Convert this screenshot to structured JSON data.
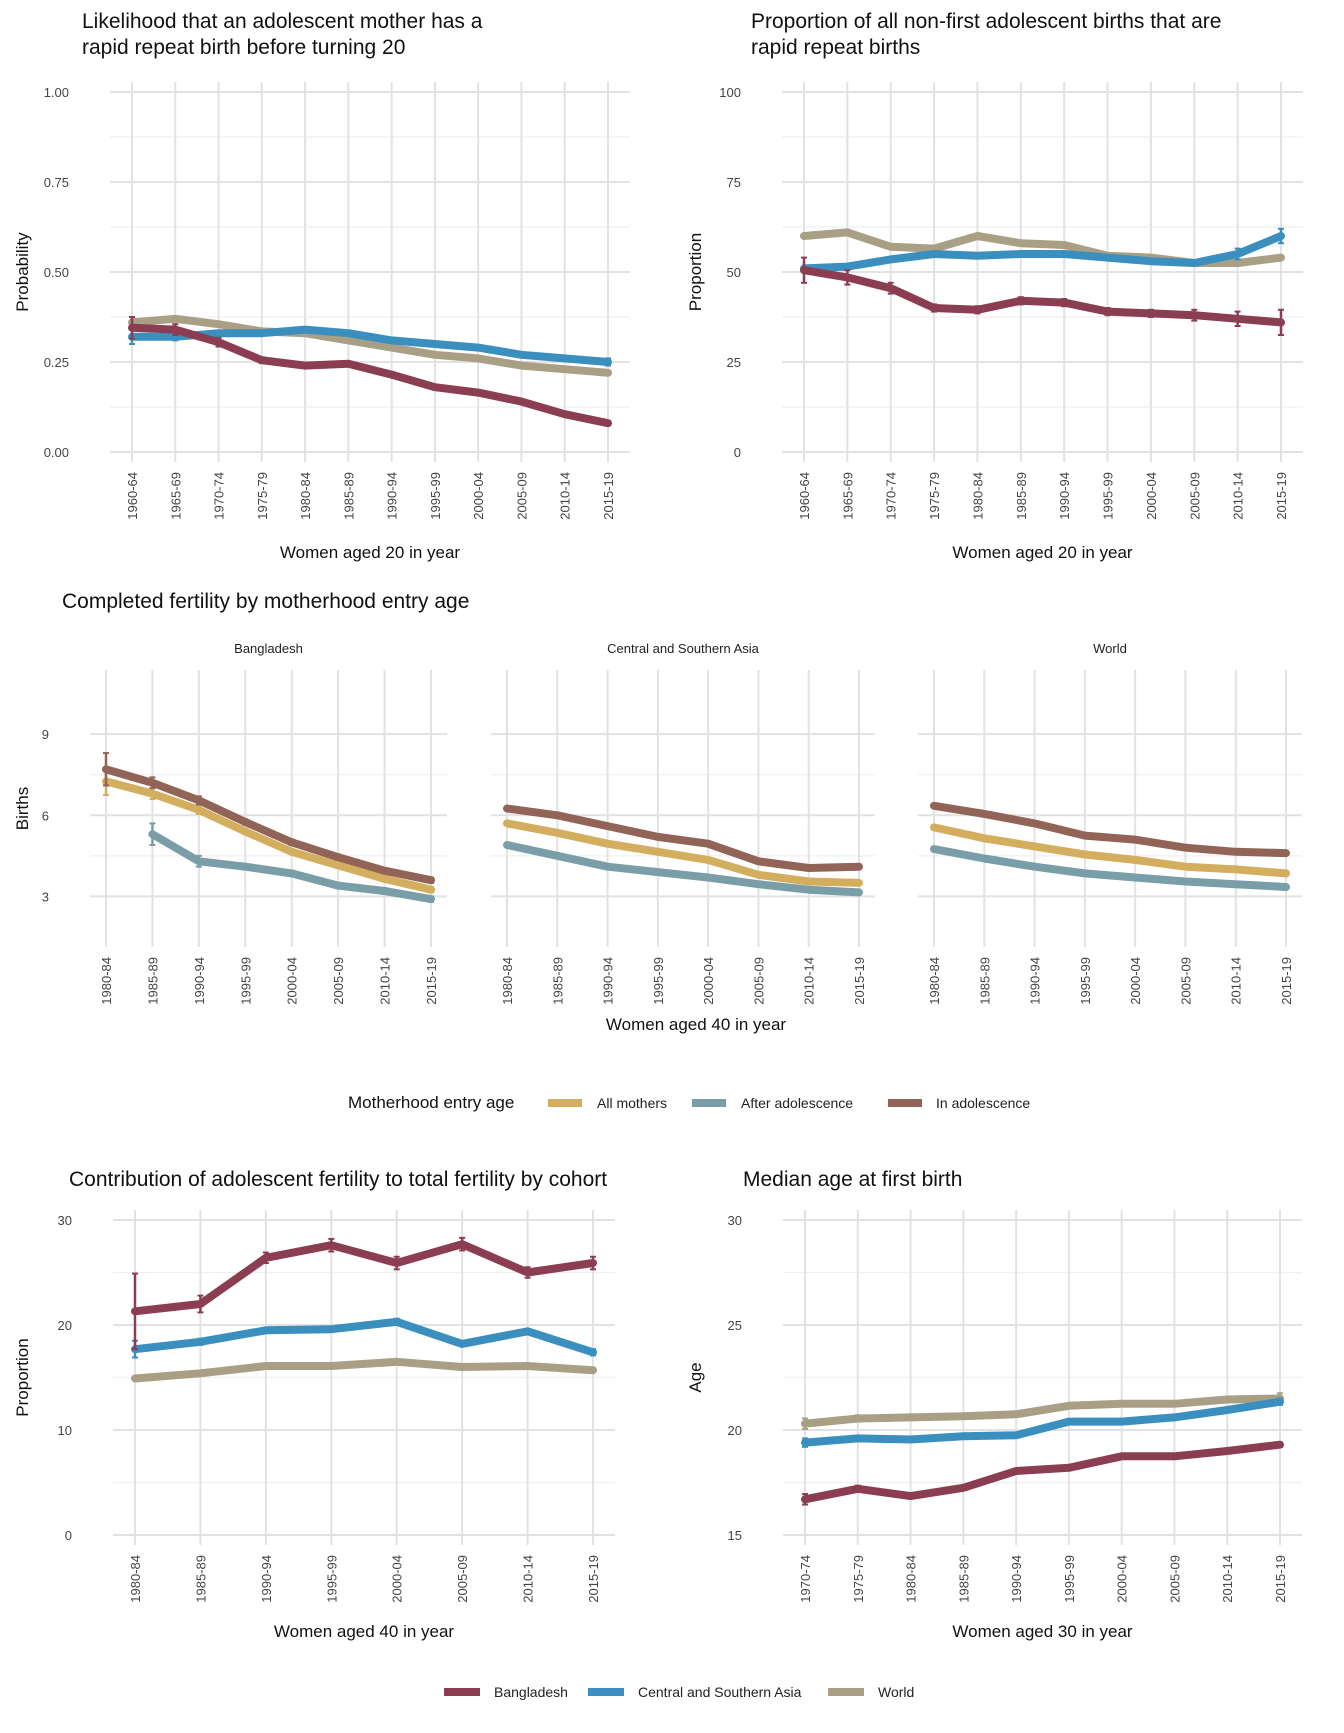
{
  "colors": {
    "Bangladesh": "#8B3E52",
    "Central and Southern Asia": "#3A8FBE",
    "World": "#A89F85",
    "All mothers": "#D4AE5F",
    "After adolescence": "#7A9EA8",
    "In adolescence": "#916457"
  },
  "legend_bottom": {
    "items": [
      "Bangladesh",
      "Central and Southern Asia",
      "World"
    ]
  },
  "legend_mid": {
    "title": "Motherhood entry age",
    "items": [
      "All mothers",
      "After adolescence",
      "In adolescence"
    ]
  },
  "chart_data": [
    {
      "id": "p1",
      "type": "line",
      "title": "Likelihood that an adolescent mother has a rapid repeat birth before turning 20",
      "title_lines": [
        "Likelihood that an adolescent mother has a",
        "rapid repeat birth before turning 20"
      ],
      "xlabel": "Women aged 20 in year",
      "ylabel": "Probability",
      "ylim": [
        0,
        1.0
      ],
      "yticks": [
        0,
        0.25,
        0.5,
        0.75,
        1.0
      ],
      "ytick_labels": [
        "0.00",
        "0.25",
        "0.50",
        "0.75",
        "1.00"
      ],
      "categories": [
        "1960-64",
        "1965-69",
        "1970-74",
        "1975-79",
        "1980-84",
        "1985-89",
        "1990-94",
        "1995-99",
        "2000-04",
        "2005-09",
        "2010-14",
        "2015-19"
      ],
      "grid": true,
      "series": [
        {
          "name": "World",
          "values": [
            0.36,
            0.37,
            0.355,
            0.335,
            0.33,
            0.31,
            0.29,
            0.27,
            0.26,
            0.24,
            0.23,
            0.22
          ]
        },
        {
          "name": "Central and Southern Asia",
          "values": [
            0.32,
            0.32,
            0.33,
            0.33,
            0.34,
            0.33,
            0.31,
            0.3,
            0.29,
            0.27,
            0.26,
            0.25
          ],
          "err": [
            0.02,
            0.01,
            0,
            0,
            0,
            0,
            0,
            0,
            0,
            0,
            0,
            0.01
          ]
        },
        {
          "name": "Bangladesh",
          "values": [
            0.345,
            0.34,
            0.305,
            0.255,
            0.24,
            0.245,
            0.215,
            0.18,
            0.165,
            0.14,
            0.105,
            0.08
          ],
          "err": [
            0.03,
            0.015,
            0.012,
            0.008,
            0.006,
            0.006,
            0.006,
            0.006,
            0.006,
            0.006,
            0.006,
            0.006
          ]
        }
      ]
    },
    {
      "id": "p2",
      "type": "line",
      "title": "Proportion of all non-first adolescent births that are rapid repeat births",
      "title_lines": [
        "Proportion of all non-first adolescent births that are",
        "rapid repeat births"
      ],
      "xlabel": "Women aged 20 in year",
      "ylabel": "Proportion",
      "ylim": [
        0,
        100
      ],
      "yticks": [
        0,
        25,
        50,
        75,
        100
      ],
      "ytick_labels": [
        "0",
        "25",
        "50",
        "75",
        "100"
      ],
      "categories": [
        "1960-64",
        "1965-69",
        "1970-74",
        "1975-79",
        "1980-84",
        "1985-89",
        "1990-94",
        "1995-99",
        "2000-04",
        "2005-09",
        "2010-14",
        "2015-19"
      ],
      "grid": true,
      "series": [
        {
          "name": "World",
          "values": [
            60,
            61,
            57,
            56.5,
            60,
            58,
            57.5,
            54.5,
            54,
            52.5,
            52.5,
            54
          ]
        },
        {
          "name": "Central and Southern Asia",
          "values": [
            51,
            51.5,
            53.5,
            55,
            54.5,
            55,
            55,
            54,
            53,
            52.5,
            55,
            60
          ],
          "err": [
            0,
            0,
            0,
            0,
            0,
            0,
            0,
            0,
            0,
            0,
            1.5,
            2
          ]
        },
        {
          "name": "Bangladesh",
          "values": [
            50.5,
            48.5,
            45.5,
            40,
            39.5,
            42,
            41.5,
            39,
            38.5,
            38,
            37,
            36
          ],
          "err": [
            3.5,
            2,
            1.5,
            1,
            1,
            1,
            1,
            1,
            1,
            1.5,
            2,
            3.5
          ]
        }
      ]
    },
    {
      "id": "p3",
      "type": "line",
      "title": "Completed fertility by motherhood entry age",
      "xlabel": "Women aged 40 in year",
      "ylabel": "Births",
      "ylim": [
        1.5,
        11
      ],
      "yticks": [
        3,
        6,
        9
      ],
      "ytick_labels": [
        "3",
        "6",
        "9"
      ],
      "categories": [
        "1980-84",
        "1985-89",
        "1990-94",
        "1995-99",
        "2000-04",
        "2005-09",
        "2010-14",
        "2015-19"
      ],
      "grid": true,
      "facets": [
        {
          "name": "Bangladesh",
          "series": [
            {
              "name": "After adolescence",
              "values": [
                null,
                5.3,
                4.3,
                4.1,
                3.85,
                3.4,
                3.2,
                2.9
              ],
              "err": [
                0,
                0.4,
                0.2,
                0.1,
                0.1,
                0.1,
                0.1,
                0.1
              ]
            },
            {
              "name": "All mothers",
              "values": [
                7.25,
                6.8,
                6.2,
                5.4,
                4.65,
                4.15,
                3.65,
                3.25
              ],
              "err": [
                0.5,
                0.2,
                0.15,
                0.1,
                0.1,
                0.1,
                0.1,
                0.1
              ]
            },
            {
              "name": "In adolescence",
              "values": [
                7.7,
                7.2,
                6.55,
                5.75,
                5.0,
                4.45,
                3.95,
                3.6
              ],
              "err": [
                0.6,
                0.2,
                0.15,
                0.1,
                0.1,
                0.1,
                0.1,
                0.1
              ]
            }
          ]
        },
        {
          "name": "Central and Southern Asia",
          "series": [
            {
              "name": "After adolescence",
              "values": [
                4.9,
                4.5,
                4.1,
                3.9,
                3.7,
                3.45,
                3.25,
                3.15
              ]
            },
            {
              "name": "All mothers",
              "values": [
                5.7,
                5.35,
                4.95,
                4.65,
                4.35,
                3.8,
                3.55,
                3.5
              ]
            },
            {
              "name": "In adolescence",
              "values": [
                6.25,
                6.0,
                5.6,
                5.2,
                4.95,
                4.3,
                4.05,
                4.1
              ]
            }
          ]
        },
        {
          "name": "World",
          "series": [
            {
              "name": "After adolescence",
              "values": [
                4.75,
                4.4,
                4.1,
                3.85,
                3.7,
                3.55,
                3.45,
                3.35
              ]
            },
            {
              "name": "All mothers",
              "values": [
                5.55,
                5.15,
                4.85,
                4.55,
                4.35,
                4.1,
                4.0,
                3.85
              ]
            },
            {
              "name": "In adolescence",
              "values": [
                6.35,
                6.05,
                5.7,
                5.25,
                5.1,
                4.8,
                4.65,
                4.6
              ]
            }
          ]
        }
      ]
    },
    {
      "id": "p4",
      "type": "line",
      "title": "Contribution of adolescent fertility to total fertility by cohort",
      "xlabel": "Women aged 40 in year",
      "ylabel": "Proportion",
      "ylim": [
        0,
        30
      ],
      "yticks": [
        0,
        10,
        20,
        30
      ],
      "ytick_labels": [
        "0",
        "10",
        "20",
        "30"
      ],
      "categories": [
        "1980-84",
        "1985-89",
        "1990-94",
        "1995-99",
        "2000-04",
        "2005-09",
        "2010-14",
        "2015-19"
      ],
      "grid": true,
      "series": [
        {
          "name": "World",
          "values": [
            14.9,
            15.4,
            16.1,
            16.1,
            16.5,
            16.0,
            16.1,
            15.7
          ]
        },
        {
          "name": "Central and Southern Asia",
          "values": [
            17.7,
            18.4,
            19.5,
            19.6,
            20.3,
            18.2,
            19.4,
            17.4
          ],
          "err": [
            0.8,
            0.3,
            0.2,
            0.2,
            0.3,
            0.2,
            0.2,
            0.3
          ]
        },
        {
          "name": "Bangladesh",
          "values": [
            21.3,
            22.0,
            26.4,
            27.6,
            25.9,
            27.7,
            25.0,
            25.9
          ],
          "err": [
            3.6,
            0.8,
            0.5,
            0.6,
            0.6,
            0.6,
            0.5,
            0.6
          ]
        }
      ]
    },
    {
      "id": "p5",
      "type": "line",
      "title": "Median age at first birth",
      "xlabel": "Women aged 30 in year",
      "ylabel": "Age",
      "ylim": [
        15,
        30
      ],
      "yticks": [
        15,
        20,
        25,
        30
      ],
      "ytick_labels": [
        "15",
        "20",
        "25",
        "30"
      ],
      "categories": [
        "1970-74",
        "1975-79",
        "1980-84",
        "1985-89",
        "1990-94",
        "1995-99",
        "2000-04",
        "2005-09",
        "2010-14",
        "2015-19"
      ],
      "grid": true,
      "series": [
        {
          "name": "World",
          "values": [
            20.3,
            20.55,
            20.6,
            20.65,
            20.75,
            21.15,
            21.25,
            21.25,
            21.45,
            21.5
          ],
          "err": [
            0.25,
            0.15,
            0.1,
            0.1,
            0,
            0,
            0,
            0,
            0,
            0.25
          ]
        },
        {
          "name": "Central and Southern Asia",
          "values": [
            19.4,
            19.6,
            19.55,
            19.7,
            19.75,
            20.4,
            20.4,
            20.6,
            20.95,
            21.35
          ],
          "err": [
            0.2,
            0.1,
            0,
            0,
            0,
            0,
            0,
            0,
            0,
            0.15
          ]
        },
        {
          "name": "Bangladesh",
          "values": [
            16.7,
            17.2,
            16.85,
            17.25,
            18.05,
            18.2,
            18.75,
            18.75,
            19.0,
            19.3
          ],
          "err": [
            0.25,
            0.15,
            0.05,
            0.05,
            0.05,
            0.05,
            0.05,
            0.05,
            0.05,
            0.1
          ]
        }
      ]
    }
  ]
}
